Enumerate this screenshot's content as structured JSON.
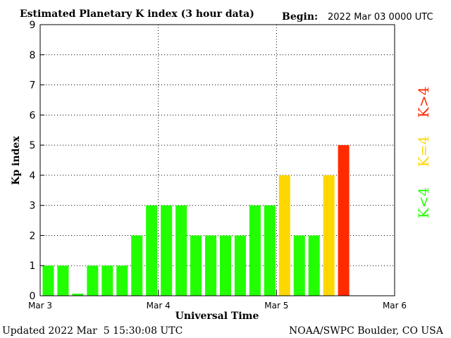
{
  "chart_data": {
    "type": "bar",
    "title": "Estimated Planetary K index (3 hour data)",
    "begin_label": "Begin:",
    "begin_value": "2022 Mar 03 0000 UTC",
    "ylabel": "Kp index",
    "xlabel": "Universal Time",
    "ylim": [
      0,
      9
    ],
    "yticks": [
      "0",
      "1",
      "2",
      "3",
      "4",
      "5",
      "6",
      "7",
      "8",
      "9"
    ],
    "xticks": [
      "Mar 3",
      "Mar 4",
      "Mar 5",
      "Mar 6"
    ],
    "bins_total": 24,
    "values": [
      1,
      1,
      0.07,
      1,
      1,
      1,
      2,
      3,
      3,
      3,
      2,
      2,
      2,
      2,
      3,
      3,
      4,
      2,
      2,
      4,
      5
    ],
    "grid": true,
    "colors": {
      "low": "#22ff00",
      "mid": "#ffd700",
      "high": "#ff2a00"
    },
    "legend": [
      {
        "label": "K<4",
        "color": "#22ff00"
      },
      {
        "label": "K=4",
        "color": "#ffd700"
      },
      {
        "label": "K>4",
        "color": "#ff2a00"
      }
    ],
    "updated": "Updated 2022 Mar  5 15:30:08 UTC",
    "credit": "NOAA/SWPC Boulder, CO USA"
  }
}
